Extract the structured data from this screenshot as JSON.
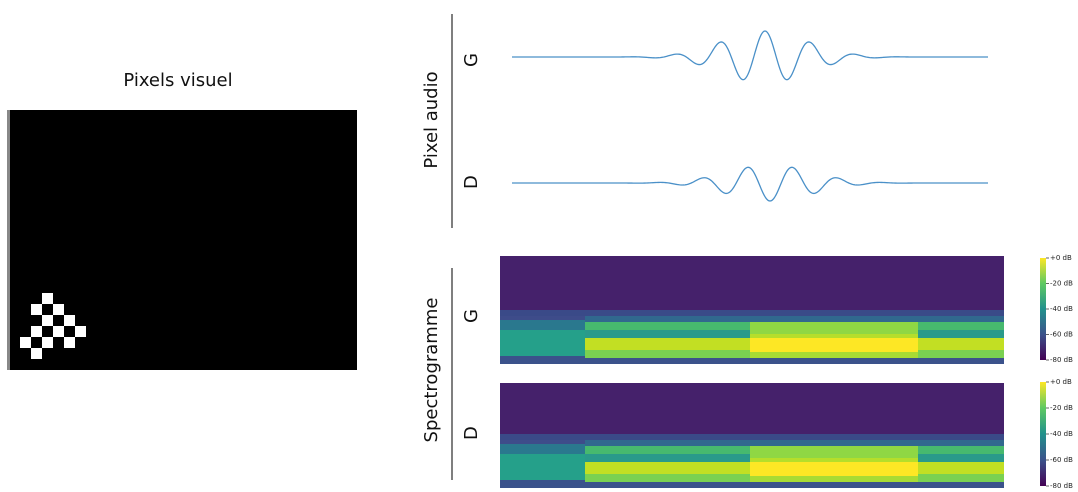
{
  "visual": {
    "title": "Pixels visuel"
  },
  "audio": {
    "title": "Pixel audio",
    "channels": [
      "G",
      "D"
    ]
  },
  "spectrogram": {
    "title": "Spectrogramme",
    "channels": [
      "G",
      "D"
    ],
    "colorbars": [
      {
        "labels": [
          "+0 dB",
          "-20 dB",
          "-40 dB",
          "-60 dB",
          "-80 dB"
        ]
      },
      {
        "labels": [
          "+0 dB",
          "-20 dB",
          "-40 dB",
          "-60 dB",
          "-80 dB"
        ]
      }
    ]
  }
}
